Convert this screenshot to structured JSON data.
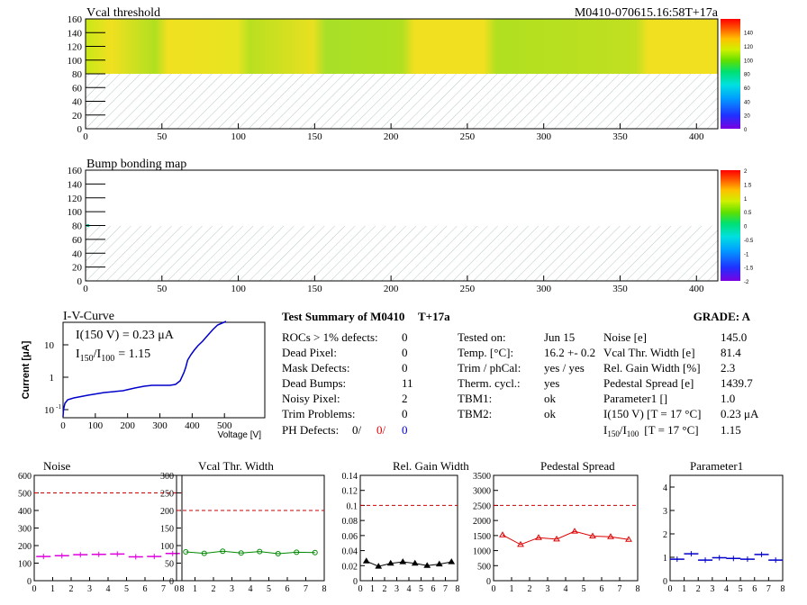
{
  "header": {
    "title": "Vcal threshold",
    "module_id": "M0410-070615.16:58T+17a"
  },
  "map1": {
    "title": "Vcal threshold",
    "xticks": [
      "0",
      "50",
      "100",
      "150",
      "200",
      "250",
      "300",
      "350",
      "400"
    ],
    "yticks": [
      "0",
      "20",
      "40",
      "60",
      "80",
      "100",
      "120",
      "140",
      "160"
    ],
    "scale": [
      "0",
      "20",
      "40",
      "60",
      "80",
      "100",
      "120",
      "140"
    ]
  },
  "map2": {
    "title": "Bump bonding map",
    "xticks": [
      "0",
      "50",
      "100",
      "150",
      "200",
      "250",
      "300",
      "350",
      "400"
    ],
    "yticks": [
      "0",
      "20",
      "40",
      "60",
      "80",
      "100",
      "120",
      "140",
      "160"
    ],
    "scale": [
      "-2",
      "-1.5",
      "-1",
      "-0.5",
      "0",
      "0.5",
      "1",
      "1.5",
      "2"
    ]
  },
  "iv": {
    "title": "I-V-Curve",
    "ylabel": "Current [μA]",
    "xlabel": "Voltage [V]",
    "xticks": [
      "0",
      "100",
      "200",
      "300",
      "400",
      "500"
    ],
    "yticks": [
      "10",
      "1",
      "10"
    ],
    "yexp": "-1",
    "i150": "I(150 V) = 0.23 μA",
    "ratio_label": "I",
    "ratio_sub1": "150",
    "ratio_sep": "/I",
    "ratio_sub2": "100",
    "ratio_value": "=  1.15"
  },
  "summary": {
    "title": "Test Summary of M0410",
    "tag": "T+17a",
    "grade": "GRADE:  A",
    "col1": [
      {
        "label": "ROCs > 1% defects:",
        "value": "0"
      },
      {
        "label": "Dead Pixel:",
        "value": "0"
      },
      {
        "label": "Mask Defects:",
        "value": "0"
      },
      {
        "label": "Dead Bumps:",
        "value": "11"
      },
      {
        "label": "Noisy Pixel:",
        "value": "2"
      },
      {
        "label": "Trim Problems:",
        "value": "0"
      }
    ],
    "ph_label": "PH Defects:",
    "ph_values": [
      "0/",
      "0/",
      "0"
    ],
    "col2": [
      {
        "label": "Tested on:",
        "value": "Jun 15"
      },
      {
        "label": "Temp. [°C]:",
        "value": "16.2 +- 0.2"
      },
      {
        "label": "Trim / phCal:",
        "value": "yes / yes"
      },
      {
        "label": "Therm. cycl.:",
        "value": "yes"
      },
      {
        "label": "TBM1:",
        "value": "ok"
      },
      {
        "label": "TBM2:",
        "value": "ok"
      }
    ],
    "col3": [
      {
        "label": "Noise [e]",
        "value": "145.0"
      },
      {
        "label": "Vcal Thr. Width [e]",
        "value": "81.4"
      },
      {
        "label": "Rel. Gain Width [%]",
        "value": "2.3"
      },
      {
        "label": "Pedestal Spread [e]",
        "value": "1439.7"
      },
      {
        "label": "Parameter1 []",
        "value": "1.0"
      },
      {
        "label": "I(150 V) [T = 17 °C]",
        "value": "0.23 μA"
      }
    ],
    "ratio_row": {
      "label": "I",
      "sub1": "150",
      "sep": "/I",
      "sub2": "100",
      "rest": "[T = 17 °C]",
      "value": "1.15"
    }
  },
  "colors": {
    "accent_red": "#e00000",
    "accent_blue": "#0000cc"
  },
  "chart_data": [
    {
      "type": "scatter",
      "title": "Noise",
      "x": [
        0.5,
        1.5,
        2.5,
        3.5,
        4.5,
        5.5,
        6.5,
        7.5
      ],
      "values": [
        138,
        142,
        148,
        150,
        152,
        136,
        138,
        155
      ],
      "ylim": [
        0,
        600
      ],
      "xlim": [
        0,
        8
      ],
      "yticks": [
        "0",
        "100",
        "200",
        "300",
        "400",
        "500",
        "600"
      ],
      "xticks": [
        "0",
        "1",
        "2",
        "3",
        "4",
        "5",
        "6",
        "7",
        "8"
      ],
      "threshold": 500,
      "color": "#dd00dd",
      "marker": "hbar"
    },
    {
      "type": "line",
      "title": "Vcal Thr. Width",
      "x": [
        0.5,
        1.5,
        2.5,
        3.5,
        4.5,
        5.5,
        6.5,
        7.5
      ],
      "values": [
        82,
        78,
        84,
        79,
        83,
        77,
        81,
        80
      ],
      "ylim": [
        0,
        300
      ],
      "xlim": [
        0,
        8
      ],
      "yticks": [
        "0",
        "50",
        "100",
        "150",
        "200",
        "250",
        "300"
      ],
      "xticks": [
        "0",
        "1",
        "2",
        "3",
        "4",
        "5",
        "6",
        "7",
        "8"
      ],
      "threshold": 200,
      "color": "#008800",
      "marker": "circle"
    },
    {
      "type": "line",
      "title": "Rel. Gain Width",
      "x": [
        0.5,
        1.5,
        2.5,
        3.5,
        4.5,
        5.5,
        6.5,
        7.5
      ],
      "values": [
        0.026,
        0.019,
        0.023,
        0.025,
        0.023,
        0.02,
        0.022,
        0.025
      ],
      "ylim": [
        0,
        0.14
      ],
      "xlim": [
        0,
        8
      ],
      "yticks": [
        "0",
        "0.02",
        "0.04",
        "0.06",
        "0.08",
        "0.1",
        "0.12",
        "0.14"
      ],
      "xticks": [
        "0",
        "1",
        "2",
        "3",
        "4",
        "5",
        "6",
        "7",
        "8"
      ],
      "threshold": 0.1,
      "color": "#000000",
      "marker": "tri"
    },
    {
      "type": "line",
      "title": "Pedestal Spread",
      "x": [
        0.5,
        1.5,
        2.5,
        3.5,
        4.5,
        5.5,
        6.5,
        7.5
      ],
      "values": [
        1520,
        1200,
        1430,
        1380,
        1640,
        1480,
        1460,
        1370
      ],
      "ylim": [
        0,
        3500
      ],
      "xlim": [
        0,
        8
      ],
      "yticks": [
        "0",
        "500",
        "1000",
        "1500",
        "2000",
        "2500",
        "3000",
        "3500"
      ],
      "xticks": [
        "0",
        "1",
        "2",
        "3",
        "4",
        "5",
        "6",
        "7",
        "8"
      ],
      "threshold": 2500,
      "color": "#dd0000",
      "marker": "tri"
    },
    {
      "type": "scatter",
      "title": "Parameter1",
      "x": [
        0.5,
        1.5,
        2.5,
        3.5,
        4.5,
        5.5,
        6.5,
        7.5
      ],
      "values": [
        0.92,
        1.15,
        0.88,
        0.98,
        0.95,
        0.92,
        1.12,
        0.88
      ],
      "ylim": [
        0,
        4.5
      ],
      "xlim": [
        0,
        8
      ],
      "yticks": [
        "0",
        "1",
        "2",
        "3",
        "4"
      ],
      "xticks": [
        "0",
        "1",
        "2",
        "3",
        "4",
        "5",
        "6",
        "7",
        "8"
      ],
      "color": "#0000cc",
      "marker": "hbar"
    }
  ]
}
